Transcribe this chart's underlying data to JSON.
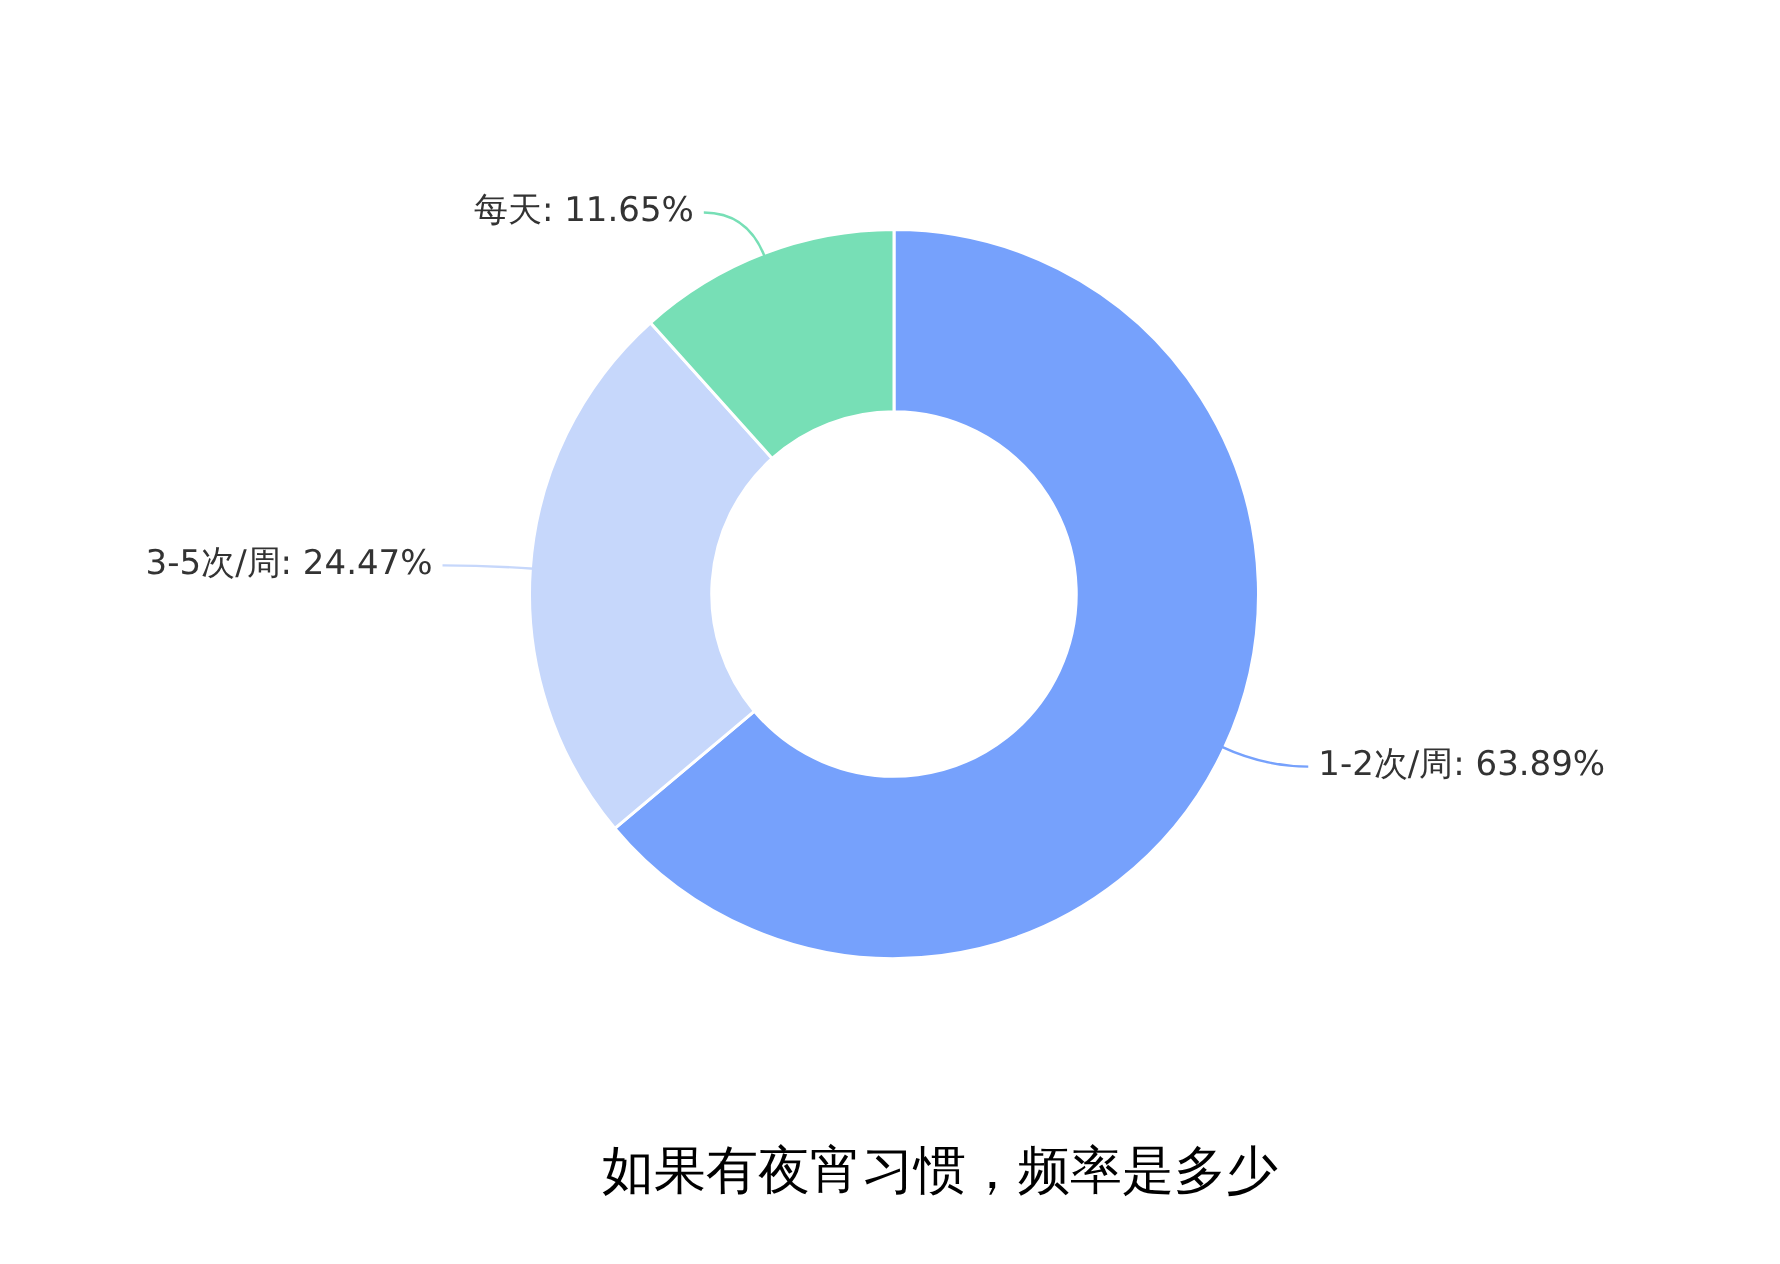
{
  "chart_data": {
    "type": "donut",
    "title": "如果有夜宵习惯，频率是多少",
    "categories": [
      "1-2次/周",
      "3-5次/周",
      "每天"
    ],
    "values": [
      63.89,
      24.47,
      11.65
    ],
    "colors": [
      "#76a1fc",
      "#c6d7fb",
      "#77dfb6"
    ],
    "value_labels": [
      ": 63.89%",
      ": 24.47%",
      ": 11.65%"
    ],
    "legend": false
  }
}
